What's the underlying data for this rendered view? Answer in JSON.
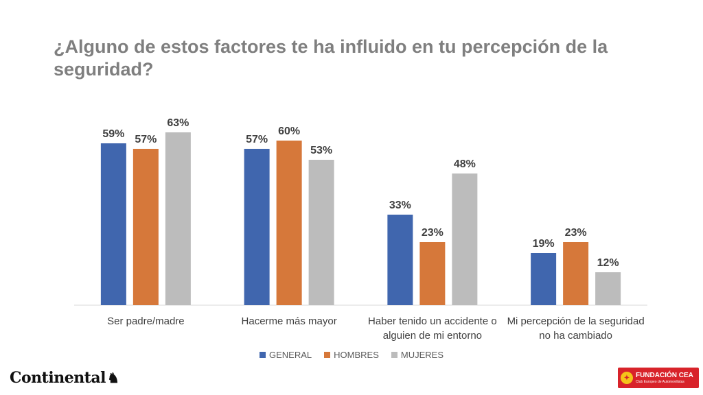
{
  "title": "¿Alguno de estos factores te ha influido en tu percepción de la seguridad?",
  "chart_data": {
    "type": "bar",
    "categories": [
      [
        "Ser padre/madre"
      ],
      [
        "Hacerme más mayor"
      ],
      [
        "Haber tenido un accidente o",
        "alguien de mi entorno"
      ],
      [
        "Mi percepción de la seguridad",
        "no ha cambiado"
      ]
    ],
    "series": [
      {
        "name": "GENERAL",
        "color": "#4066ae",
        "values": [
          59,
          57,
          33,
          19
        ]
      },
      {
        "name": "HOMBRES",
        "color": "#d6783a",
        "values": [
          57,
          60,
          23,
          23
        ]
      },
      {
        "name": "MUJERES",
        "color": "#bcbcbc",
        "values": [
          63,
          53,
          48,
          12
        ]
      }
    ],
    "value_suffix": "%",
    "ylim": [
      0,
      63
    ],
    "legend_position": "bottom",
    "grid": false
  },
  "logos": {
    "left_brand": "Continental",
    "right_brand": "FUNDACIÓN CEA",
    "right_tagline": "Club Europeo de Automovilistas"
  }
}
